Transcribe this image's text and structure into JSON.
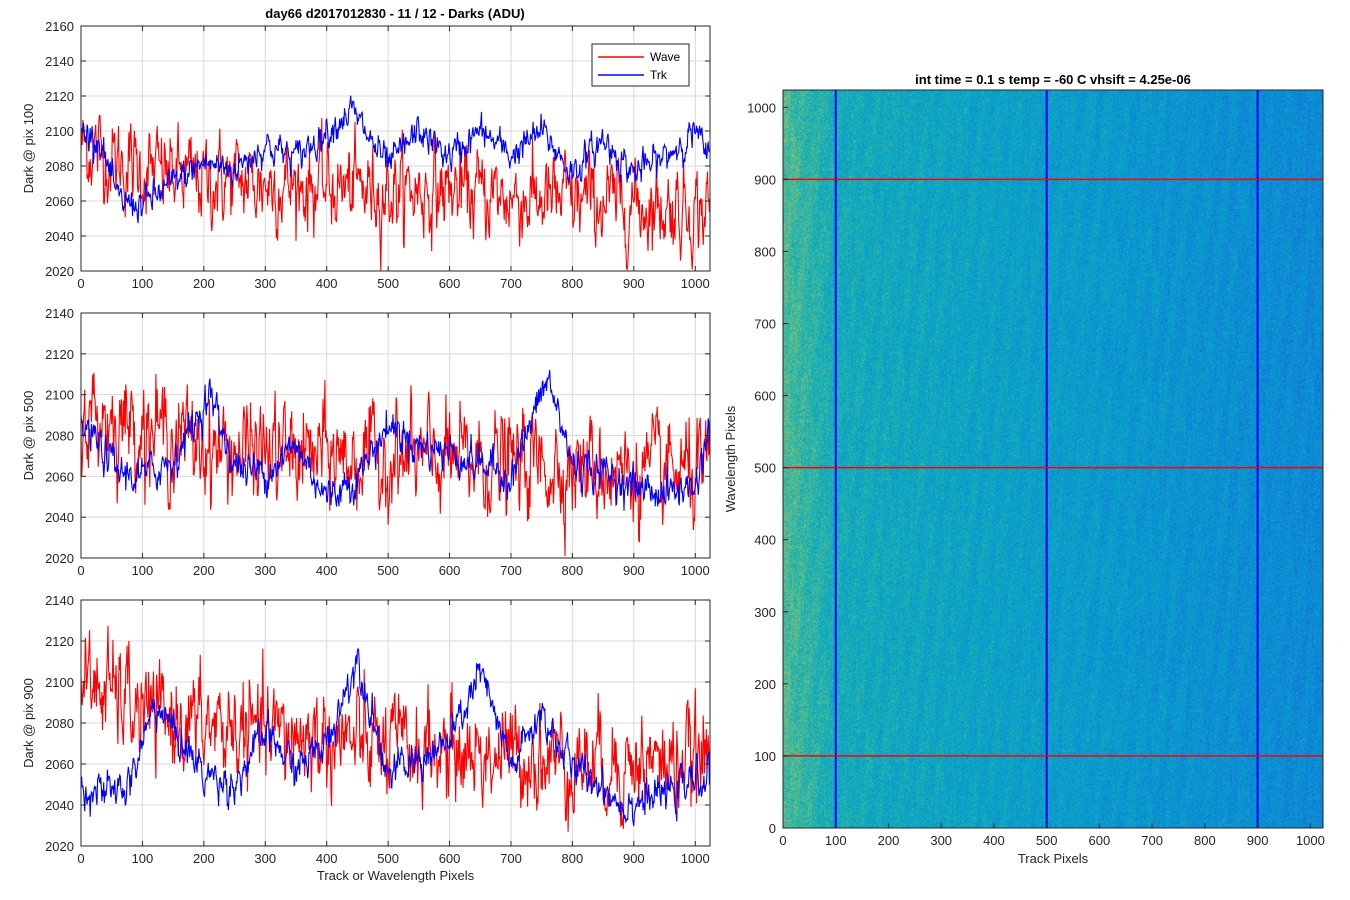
{
  "figure_title": "day66 d2017012830 - 11 / 12 - Darks (ADU)",
  "colors": {
    "wave": "#ff0000",
    "trk": "#0000ff",
    "grid": "#d9d9d9",
    "axis": "#262626"
  },
  "chart_data": [
    {
      "type": "line",
      "ylabel": "Dark @ pix 100",
      "xlabel": "",
      "xlim": [
        0,
        1024
      ],
      "ylim": [
        2020,
        2160
      ],
      "xticks": [
        0,
        100,
        200,
        300,
        400,
        500,
        600,
        700,
        800,
        900,
        1000
      ],
      "yticks": [
        2020,
        2040,
        2060,
        2080,
        2100,
        2120,
        2140,
        2160
      ],
      "grid": true,
      "legend": {
        "position": "top-right",
        "entries": [
          "Wave",
          "Trk"
        ]
      },
      "series": [
        {
          "name": "Wave",
          "color": "#ff0000",
          "mean": 2070,
          "noise": 13,
          "trend_x": [
            0,
            30,
            60,
            100,
            200,
            300,
            400,
            500,
            600,
            700,
            800,
            900,
            1024
          ],
          "trend_y": [
            2092,
            2088,
            2082,
            2078,
            2072,
            2070,
            2068,
            2066,
            2066,
            2062,
            2060,
            2058,
            2055
          ]
        },
        {
          "name": "Trk",
          "color": "#0000ff",
          "mean": 2080,
          "noise": 5,
          "trend_x": [
            0,
            30,
            60,
            100,
            150,
            200,
            250,
            300,
            350,
            400,
            440,
            480,
            500,
            550,
            600,
            650,
            700,
            750,
            800,
            850,
            900,
            950,
            1000,
            1024
          ],
          "trend_y": [
            2100,
            2095,
            2060,
            2058,
            2070,
            2082,
            2078,
            2092,
            2085,
            2100,
            2112,
            2090,
            2080,
            2100,
            2085,
            2100,
            2086,
            2100,
            2076,
            2095,
            2076,
            2085,
            2100,
            2082
          ]
        }
      ]
    },
    {
      "type": "line",
      "ylabel": "Dark @ pix 500",
      "xlabel": "",
      "xlim": [
        0,
        1024
      ],
      "ylim": [
        2020,
        2140
      ],
      "xticks": [
        0,
        100,
        200,
        300,
        400,
        500,
        600,
        700,
        800,
        900,
        1000
      ],
      "yticks": [
        2020,
        2040,
        2060,
        2080,
        2100,
        2120,
        2140
      ],
      "grid": true,
      "series": [
        {
          "name": "Wave",
          "color": "#ff0000",
          "mean": 2075,
          "noise": 13,
          "trend_x": [
            0,
            50,
            100,
            150,
            200,
            250,
            300,
            400,
            500,
            600,
            700,
            800,
            900,
            1024
          ],
          "trend_y": [
            2090,
            2088,
            2085,
            2080,
            2075,
            2072,
            2072,
            2070,
            2068,
            2068,
            2066,
            2065,
            2062,
            2060
          ]
        },
        {
          "name": "Trk",
          "color": "#0000ff",
          "mean": 2070,
          "noise": 5,
          "trend_x": [
            0,
            30,
            60,
            100,
            150,
            210,
            250,
            300,
            350,
            400,
            450,
            500,
            550,
            600,
            700,
            760,
            800,
            850,
            900,
            950,
            1000,
            1024
          ],
          "trend_y": [
            2085,
            2075,
            2062,
            2060,
            2068,
            2100,
            2065,
            2062,
            2075,
            2050,
            2060,
            2085,
            2075,
            2072,
            2060,
            2108,
            2066,
            2062,
            2055,
            2052,
            2055,
            2085
          ]
        }
      ]
    },
    {
      "type": "line",
      "ylabel": "Dark @ pix 900",
      "xlabel": "Track or Wavelength Pixels",
      "xlim": [
        0,
        1024
      ],
      "ylim": [
        2020,
        2140
      ],
      "xticks": [
        0,
        100,
        200,
        300,
        400,
        500,
        600,
        700,
        800,
        900,
        1000
      ],
      "yticks": [
        2020,
        2040,
        2060,
        2080,
        2100,
        2120,
        2140
      ],
      "grid": true,
      "series": [
        {
          "name": "Wave",
          "color": "#ff0000",
          "mean": 2075,
          "noise": 13,
          "trend_x": [
            0,
            50,
            100,
            200,
            300,
            400,
            500,
            600,
            700,
            800,
            900,
            1024
          ],
          "trend_y": [
            2100,
            2095,
            2085,
            2078,
            2075,
            2072,
            2068,
            2066,
            2064,
            2062,
            2060,
            2062
          ]
        },
        {
          "name": "Trk",
          "color": "#0000ff",
          "mean": 2060,
          "noise": 5,
          "trend_x": [
            0,
            40,
            80,
            120,
            200,
            250,
            300,
            350,
            400,
            450,
            500,
            550,
            600,
            650,
            700,
            750,
            800,
            850,
            880,
            950,
            1024
          ],
          "trend_y": [
            2050,
            2045,
            2050,
            2090,
            2055,
            2050,
            2075,
            2058,
            2070,
            2112,
            2055,
            2062,
            2070,
            2105,
            2058,
            2085,
            2058,
            2050,
            2040,
            2045,
            2055
          ]
        }
      ]
    },
    {
      "type": "heatmap",
      "title": "int time = 0.1 s   temp = -60 C   vhsift = 4.25e-06",
      "xlabel": "Track Pixels",
      "ylabel": "Wavelength Pixels",
      "xlim": [
        0,
        1024
      ],
      "ylim": [
        0,
        1024
      ],
      "xticks": [
        0,
        100,
        200,
        300,
        400,
        500,
        600,
        700,
        800,
        900,
        1000
      ],
      "yticks": [
        0,
        100,
        200,
        300,
        400,
        500,
        600,
        700,
        800,
        900,
        1000
      ],
      "colormap": "parula",
      "vertical_lines": {
        "color": "#0000ff",
        "x": [
          100,
          500,
          900
        ]
      },
      "horizontal_lines": {
        "color": "#ff0000",
        "y": [
          100,
          500,
          900
        ]
      }
    }
  ]
}
